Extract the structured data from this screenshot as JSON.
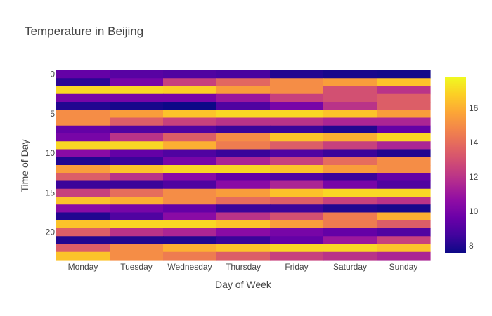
{
  "chart_data": {
    "type": "heatmap",
    "title": "Temperature in Beijing",
    "xlabel": "Day of Week",
    "ylabel": "Time of Day",
    "x": [
      "Monday",
      "Tuesday",
      "Wednesday",
      "Thursday",
      "Friday",
      "Saturday",
      "Sunday"
    ],
    "y": [
      0,
      1,
      2,
      3,
      4,
      5,
      6,
      7,
      8,
      9,
      10,
      11,
      12,
      13,
      14,
      15,
      16,
      17,
      18,
      19,
      20,
      21,
      22,
      23
    ],
    "y_ticks": [
      0,
      5,
      10,
      15,
      20
    ],
    "z": [
      [
        9.5,
        9.2,
        9.0,
        8.8,
        8.0,
        7.8,
        7.7
      ],
      [
        8.2,
        10.0,
        12.5,
        13.8,
        15.0,
        15.5,
        16.5
      ],
      [
        17.0,
        17.0,
        16.8,
        15.5,
        15.0,
        13.0,
        12.0
      ],
      [
        10.0,
        10.0,
        10.0,
        11.0,
        12.5,
        13.0,
        13.5
      ],
      [
        8.0,
        7.8,
        7.6,
        9.0,
        10.0,
        12.0,
        13.5
      ],
      [
        15.0,
        15.5,
        16.5,
        17.0,
        17.0,
        16.5,
        15.5
      ],
      [
        15.0,
        13.5,
        12.5,
        12.0,
        12.0,
        11.5,
        11.5
      ],
      [
        9.5,
        9.0,
        9.0,
        8.5,
        8.5,
        8.0,
        9.5
      ],
      [
        10.0,
        12.0,
        13.5,
        15.0,
        16.5,
        16.0,
        17.0
      ],
      [
        17.0,
        17.0,
        16.0,
        14.5,
        13.5,
        12.5,
        11.5
      ],
      [
        10.5,
        9.5,
        9.0,
        8.5,
        9.0,
        8.5,
        8.0
      ],
      [
        8.0,
        8.5,
        10.0,
        11.5,
        12.5,
        14.0,
        15.0
      ],
      [
        15.5,
        16.5,
        17.0,
        17.0,
        16.5,
        15.5,
        15.0
      ],
      [
        13.5,
        12.0,
        10.5,
        9.5,
        9.0,
        8.5,
        9.5
      ],
      [
        8.5,
        8.5,
        9.0,
        10.5,
        11.5,
        10.0,
        9.0
      ],
      [
        12.5,
        14.0,
        15.0,
        15.5,
        16.5,
        17.0,
        17.0
      ],
      [
        16.5,
        16.0,
        15.0,
        14.0,
        13.5,
        12.5,
        12.0
      ],
      [
        10.5,
        10.0,
        9.5,
        8.5,
        8.5,
        8.0,
        7.8
      ],
      [
        8.0,
        9.0,
        10.5,
        12.0,
        13.0,
        14.5,
        16.0
      ],
      [
        16.5,
        17.0,
        17.0,
        16.5,
        15.5,
        14.5,
        13.5
      ],
      [
        13.5,
        12.0,
        11.5,
        10.5,
        10.0,
        9.5,
        9.0
      ],
      [
        8.0,
        8.0,
        8.0,
        8.5,
        9.5,
        11.0,
        12.5
      ],
      [
        13.5,
        15.0,
        16.0,
        16.5,
        17.0,
        17.0,
        16.5
      ],
      [
        16.5,
        15.0,
        14.5,
        13.5,
        12.5,
        12.0,
        11.5
      ]
    ],
    "colorscale": "plasma",
    "zmin": 7.6,
    "zmax": 17.8,
    "colorbar_ticks": [
      8,
      10,
      12,
      14,
      16
    ],
    "y_reversed": true,
    "grid": false
  }
}
